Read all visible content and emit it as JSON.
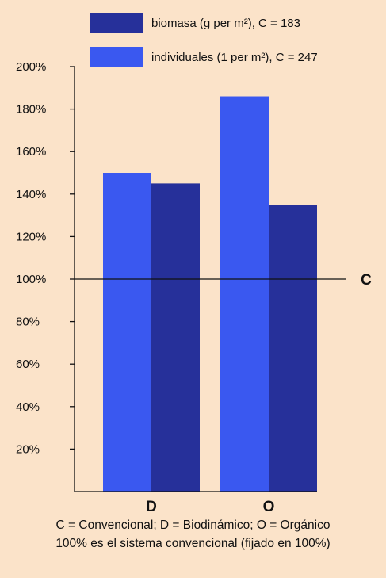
{
  "chart_data": {
    "type": "bar",
    "categories": [
      "D",
      "O"
    ],
    "series": [
      {
        "name": "individuales (1 per m²), C = 247",
        "color": "#3a58f0",
        "values": [
          150,
          186
        ]
      },
      {
        "name": "biomasa (g per m²), C = 183",
        "color": "#26309a",
        "values": [
          145,
          135
        ]
      }
    ],
    "legend_order": [
      1,
      0
    ],
    "ylim": [
      0,
      200
    ],
    "yticks": [
      20,
      40,
      60,
      80,
      100,
      120,
      140,
      160,
      180,
      200
    ],
    "ytick_labels": [
      "20%",
      "40%",
      "60%",
      "80%",
      "100%",
      "120%",
      "140%",
      "160%",
      "180%",
      "200%"
    ],
    "reference_line": {
      "value": 100,
      "label": "C"
    },
    "legend_position": "top",
    "grid": false
  },
  "footnotes": [
    "C = Convencional; D = Biodinámico; O = Orgánico",
    "100% es el sistema convencional (fijado en 100%)"
  ]
}
